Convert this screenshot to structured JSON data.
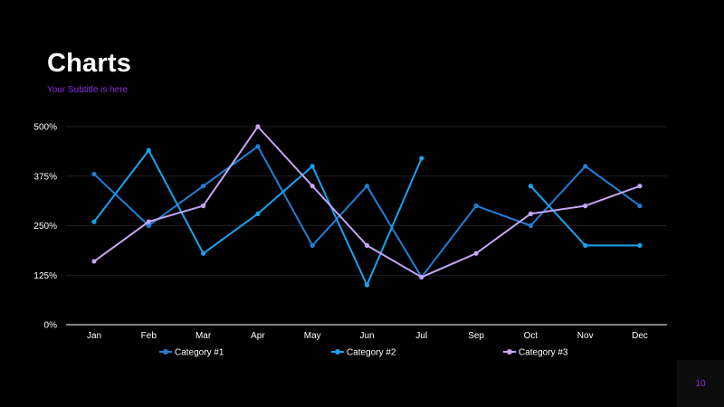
{
  "slide": {
    "title": "Charts",
    "subtitle": "Your Subtitle is here",
    "page_number": "10"
  },
  "colors": {
    "background": "#000000",
    "accent": "#8a2be2",
    "grid": "#2a2a2a",
    "axis": "#d0d0d0",
    "text": "#ffffff"
  },
  "chart_data": {
    "type": "line",
    "title": "",
    "xlabel": "",
    "ylabel": "",
    "categories": [
      "Jan",
      "Feb",
      "Mar",
      "Apr",
      "May",
      "Jun",
      "Jul",
      "Sep",
      "Oct",
      "Nov",
      "Dec"
    ],
    "ylim": [
      0,
      500
    ],
    "yticks": [
      0,
      125,
      250,
      375,
      500
    ],
    "ytick_labels": [
      "0%",
      "125%",
      "250%",
      "375%",
      "500%"
    ],
    "grid": true,
    "legend": "bottom",
    "series": [
      {
        "name": "Category #1",
        "color": "#1f7fd6",
        "values": [
          380,
          250,
          350,
          450,
          200,
          350,
          120,
          300,
          250,
          400,
          300
        ]
      },
      {
        "name": "Category #2",
        "color": "#18a3f0",
        "values": [
          260,
          440,
          180,
          280,
          400,
          100,
          420,
          null,
          350,
          200,
          200
        ]
      },
      {
        "name": "Category #3",
        "color": "#c4a5f5",
        "values": [
          160,
          260,
          300,
          500,
          350,
          200,
          120,
          180,
          280,
          300,
          350
        ]
      }
    ]
  }
}
